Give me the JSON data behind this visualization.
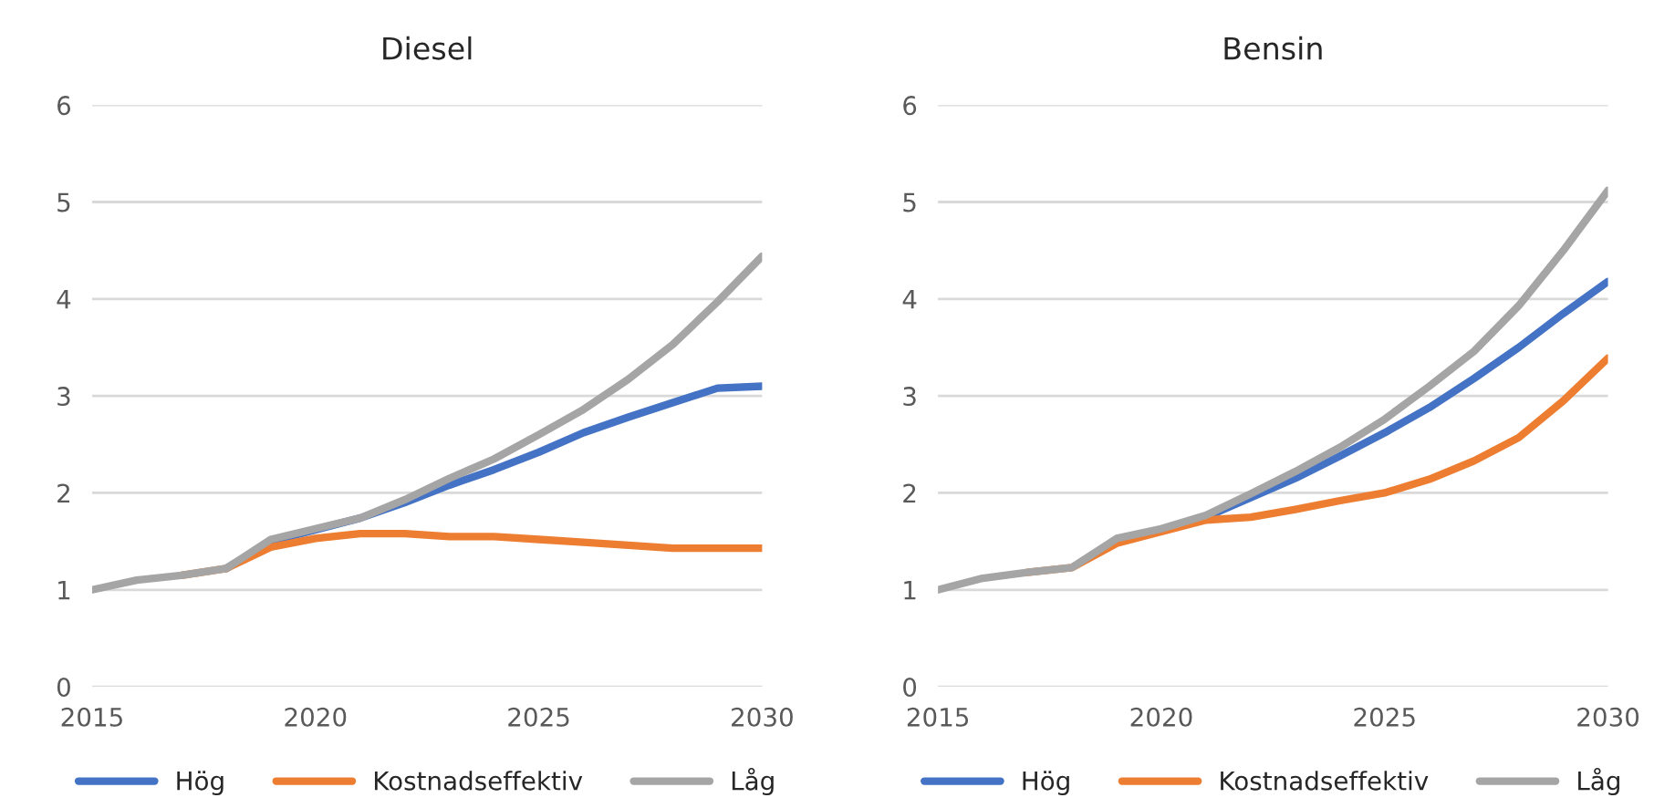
{
  "chart_data": [
    {
      "type": "line",
      "title": "Diesel",
      "x": [
        2015,
        2016,
        2017,
        2018,
        2019,
        2020,
        2021,
        2022,
        2023,
        2024,
        2025,
        2026,
        2027,
        2028,
        2029,
        2030
      ],
      "xlim": [
        2015,
        2030
      ],
      "xticks": [
        2015,
        2020,
        2025,
        2030
      ],
      "ylim": [
        0,
        6
      ],
      "yticks": [
        0,
        1,
        2,
        3,
        4,
        5,
        6
      ],
      "grid": "y",
      "legend": "bottom",
      "line_style": "solid",
      "marker": "none",
      "series": [
        {
          "name": "Hög",
          "color": "#4472c4",
          "values": [
            null,
            null,
            null,
            1.22,
            1.5,
            1.62,
            1.74,
            1.9,
            2.08,
            2.24,
            2.42,
            2.62,
            2.78,
            2.93,
            3.08,
            3.1
          ]
        },
        {
          "name": "Kostnadseffektiv",
          "color": "#ed7d31",
          "values": [
            null,
            null,
            1.15,
            1.22,
            1.44,
            1.53,
            1.58,
            1.58,
            1.55,
            1.55,
            1.52,
            1.49,
            1.46,
            1.43,
            1.43,
            1.43
          ]
        },
        {
          "name": "Låg",
          "color": "#a5a5a5",
          "values": [
            1.0,
            1.1,
            1.15,
            1.22,
            1.52,
            1.63,
            1.74,
            1.93,
            2.15,
            2.35,
            2.6,
            2.86,
            3.17,
            3.53,
            3.97,
            4.44
          ]
        }
      ]
    },
    {
      "type": "line",
      "title": "Bensin",
      "x": [
        2015,
        2016,
        2017,
        2018,
        2019,
        2020,
        2021,
        2022,
        2023,
        2024,
        2025,
        2026,
        2027,
        2028,
        2029,
        2030
      ],
      "xlim": [
        2015,
        2030
      ],
      "xticks": [
        2015,
        2020,
        2025,
        2030
      ],
      "ylim": [
        0,
        6
      ],
      "yticks": [
        0,
        1,
        2,
        3,
        4,
        5,
        6
      ],
      "grid": "y",
      "legend": "bottom",
      "line_style": "solid",
      "marker": "none",
      "series": [
        {
          "name": "Hög",
          "color": "#4472c4",
          "values": [
            null,
            null,
            null,
            null,
            null,
            null,
            1.75,
            1.95,
            2.15,
            2.38,
            2.62,
            2.88,
            3.18,
            3.5,
            3.85,
            4.18
          ]
        },
        {
          "name": "Kostnadseffektiv",
          "color": "#ed7d31",
          "values": [
            null,
            null,
            1.18,
            1.23,
            1.48,
            1.6,
            1.72,
            1.75,
            1.83,
            1.92,
            2.0,
            2.14,
            2.33,
            2.57,
            2.95,
            3.39
          ]
        },
        {
          "name": "Låg",
          "color": "#a5a5a5",
          "values": [
            1.0,
            1.12,
            1.18,
            1.23,
            1.53,
            1.63,
            1.77,
            1.99,
            2.22,
            2.47,
            2.76,
            3.1,
            3.46,
            3.93,
            4.5,
            5.12
          ]
        }
      ]
    }
  ]
}
